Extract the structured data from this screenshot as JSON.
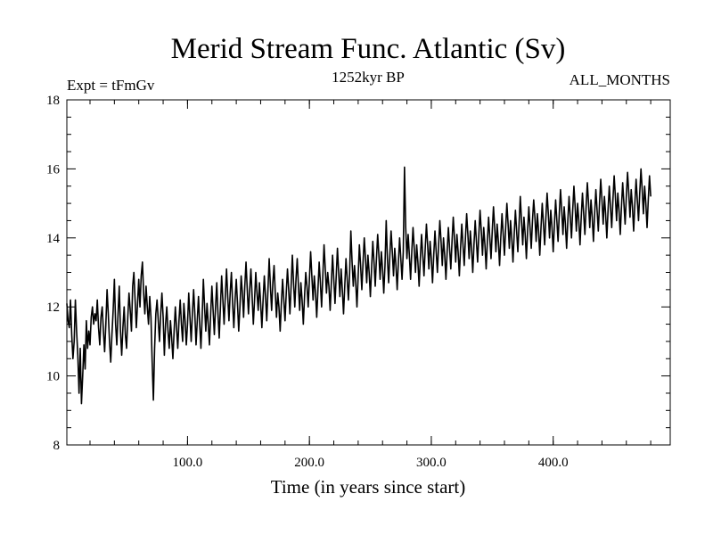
{
  "chart_data": {
    "type": "line",
    "title": "Merid Stream Func. Atlantic (Sv)",
    "experiment_label": "Expt = tFmGv",
    "period_label": "1252kyr BP",
    "months_label": "ALL_MONTHS",
    "xlabel": "Time (in years since start)",
    "ylabel": "",
    "xlim": [
      1,
      496
    ],
    "ylim": [
      8,
      18
    ],
    "xticks": [
      100,
      200,
      300,
      400
    ],
    "xtick_labels": [
      "100.0",
      "200.0",
      "300.0",
      "400.0"
    ],
    "yticks": [
      8,
      10,
      12,
      14,
      16,
      18
    ],
    "ytick_labels": [
      "8",
      "10",
      "12",
      "14",
      "16",
      "18"
    ],
    "grid": false,
    "series": [
      {
        "name": "Merid Stream Func. Atlantic",
        "x_start": 1,
        "x_step": 1,
        "values": [
          12.1,
          11.6,
          11.4,
          12.2,
          11.2,
          10.5,
          11.0,
          12.2,
          11.3,
          10.6,
          9.5,
          10.8,
          9.2,
          10.0,
          10.9,
          10.2,
          11.6,
          10.8,
          11.3,
          10.9,
          11.7,
          12.0,
          11.5,
          11.8,
          11.6,
          12.2,
          11.4,
          10.9,
          11.7,
          12.0,
          11.3,
          10.7,
          11.5,
          12.5,
          11.8,
          11.0,
          10.4,
          11.2,
          11.9,
          12.8,
          11.5,
          10.9,
          11.8,
          12.6,
          11.3,
          10.6,
          11.4,
          12.0,
          11.2,
          10.8,
          11.7,
          12.4,
          11.9,
          11.3,
          12.6,
          13.0,
          12.2,
          11.4,
          12.1,
          12.8,
          12.0,
          12.9,
          13.3,
          12.4,
          11.8,
          12.6,
          12.0,
          11.5,
          12.3,
          11.7,
          10.4,
          9.3,
          10.8,
          11.8,
          12.2,
          11.6,
          11.0,
          11.8,
          12.4,
          11.7,
          10.6,
          11.5,
          12.0,
          11.3,
          10.8,
          11.6,
          11.1,
          10.5,
          11.3,
          12.0,
          11.4,
          10.8,
          11.6,
          12.2,
          11.5,
          11.0,
          12.1,
          11.6,
          10.9,
          11.5,
          12.4,
          11.7,
          11.0,
          11.8,
          12.5,
          11.8,
          10.9,
          11.6,
          12.3,
          11.5,
          10.8,
          11.7,
          12.8,
          12.0,
          11.3,
          12.1,
          11.5,
          10.9,
          11.8,
          12.6,
          11.9,
          11.2,
          12.0,
          12.7,
          11.8,
          11.1,
          12.0,
          12.9,
          12.2,
          11.5,
          12.3,
          13.1,
          12.3,
          11.6,
          12.4,
          13.0,
          12.1,
          11.4,
          12.2,
          12.8,
          12.1,
          11.3,
          12.0,
          12.9,
          12.4,
          11.7,
          12.6,
          13.3,
          12.5,
          11.8,
          12.5,
          13.1,
          12.3,
          11.5,
          12.2,
          13.0,
          12.4,
          11.9,
          12.7,
          12.1,
          11.4,
          12.2,
          12.9,
          12.3,
          11.6,
          12.5,
          13.4,
          12.6,
          11.9,
          12.7,
          13.2,
          12.4,
          11.7,
          12.4,
          12.0,
          11.3,
          12.1,
          12.8,
          12.2,
          11.6,
          12.4,
          13.1,
          12.5,
          11.8,
          12.6,
          13.5,
          12.7,
          12.0,
          12.8,
          13.4,
          12.6,
          11.9,
          12.7,
          12.2,
          11.5,
          12.3,
          13.0,
          12.6,
          12.0,
          12.8,
          13.6,
          12.9,
          12.2,
          12.9,
          12.4,
          11.7,
          12.5,
          13.3,
          12.7,
          12.0,
          12.9,
          13.8,
          13.1,
          12.4,
          13.0,
          12.6,
          11.9,
          12.7,
          13.5,
          12.8,
          12.1,
          12.9,
          13.7,
          13.0,
          12.3,
          13.1,
          12.5,
          11.8,
          12.6,
          13.4,
          12.8,
          12.2,
          13.0,
          14.2,
          13.3,
          12.6,
          13.2,
          12.7,
          12.0,
          12.9,
          13.8,
          13.2,
          12.5,
          13.3,
          14.0,
          13.4,
          12.7,
          13.5,
          13.0,
          12.3,
          13.1,
          13.9,
          13.3,
          12.6,
          13.4,
          14.1,
          13.5,
          12.8,
          13.6,
          13.1,
          12.4,
          13.2,
          14.5,
          13.4,
          12.7,
          13.5,
          14.2,
          13.6,
          12.9,
          13.7,
          13.2,
          12.5,
          13.3,
          14.0,
          13.4,
          12.8,
          13.6,
          16.05,
          14.3,
          13.4,
          14.1,
          13.5,
          12.8,
          13.6,
          14.3,
          13.7,
          13.0,
          13.8,
          13.3,
          12.6,
          13.4,
          14.1,
          13.5,
          12.9,
          13.7,
          14.4,
          13.8,
          13.1,
          13.9,
          13.4,
          12.7,
          13.5,
          14.2,
          13.6,
          13.0,
          13.8,
          14.5,
          13.9,
          13.2,
          14.0,
          13.5,
          12.8,
          13.6,
          14.3,
          13.7,
          13.1,
          13.9,
          14.6,
          14.0,
          13.3,
          14.1,
          13.6,
          12.9,
          13.7,
          14.4,
          13.8,
          13.2,
          14.0,
          14.7,
          14.1,
          13.4,
          14.2,
          13.7,
          13.0,
          13.8,
          14.5,
          13.9,
          13.3,
          14.1,
          14.8,
          14.2,
          13.5,
          14.3,
          13.8,
          13.1,
          13.9,
          14.6,
          14.0,
          13.4,
          14.2,
          14.9,
          14.3,
          13.6,
          14.4,
          13.9,
          13.2,
          14.0,
          14.7,
          14.1,
          13.5,
          14.3,
          15.0,
          14.4,
          13.7,
          14.5,
          14.0,
          13.3,
          14.1,
          14.8,
          14.2,
          13.6,
          14.4,
          15.2,
          14.5,
          13.8,
          14.6,
          14.1,
          13.4,
          14.2,
          14.9,
          14.3,
          13.7,
          14.5,
          15.1,
          14.6,
          13.9,
          14.7,
          14.2,
          13.5,
          14.3,
          15.0,
          14.4,
          13.8,
          14.6,
          15.3,
          14.7,
          14.0,
          14.8,
          14.3,
          13.6,
          14.4,
          15.1,
          14.5,
          13.9,
          14.7,
          15.4,
          14.8,
          14.1,
          14.9,
          14.4,
          13.7,
          14.5,
          15.2,
          14.6,
          14.0,
          14.8,
          15.5,
          14.9,
          14.2,
          15.0,
          14.5,
          13.8,
          14.6,
          15.3,
          14.7,
          14.1,
          14.9,
          15.6,
          15.0,
          14.3,
          15.1,
          14.6,
          13.9,
          14.7,
          15.4,
          14.8,
          14.2,
          15.0,
          15.7,
          15.1,
          14.4,
          15.2,
          14.7,
          14.0,
          14.8,
          15.5,
          14.9,
          14.3,
          15.1,
          15.8,
          15.2,
          14.5,
          15.3,
          14.8,
          14.1,
          14.9,
          15.6,
          15.0,
          14.4,
          15.2,
          15.9,
          15.3,
          14.6,
          15.4,
          14.9,
          14.2,
          15.0,
          15.7,
          15.1,
          14.5,
          15.3,
          16.0,
          15.4,
          14.7,
          15.5,
          15.0,
          14.3,
          15.1,
          15.8,
          15.2
        ]
      }
    ]
  }
}
